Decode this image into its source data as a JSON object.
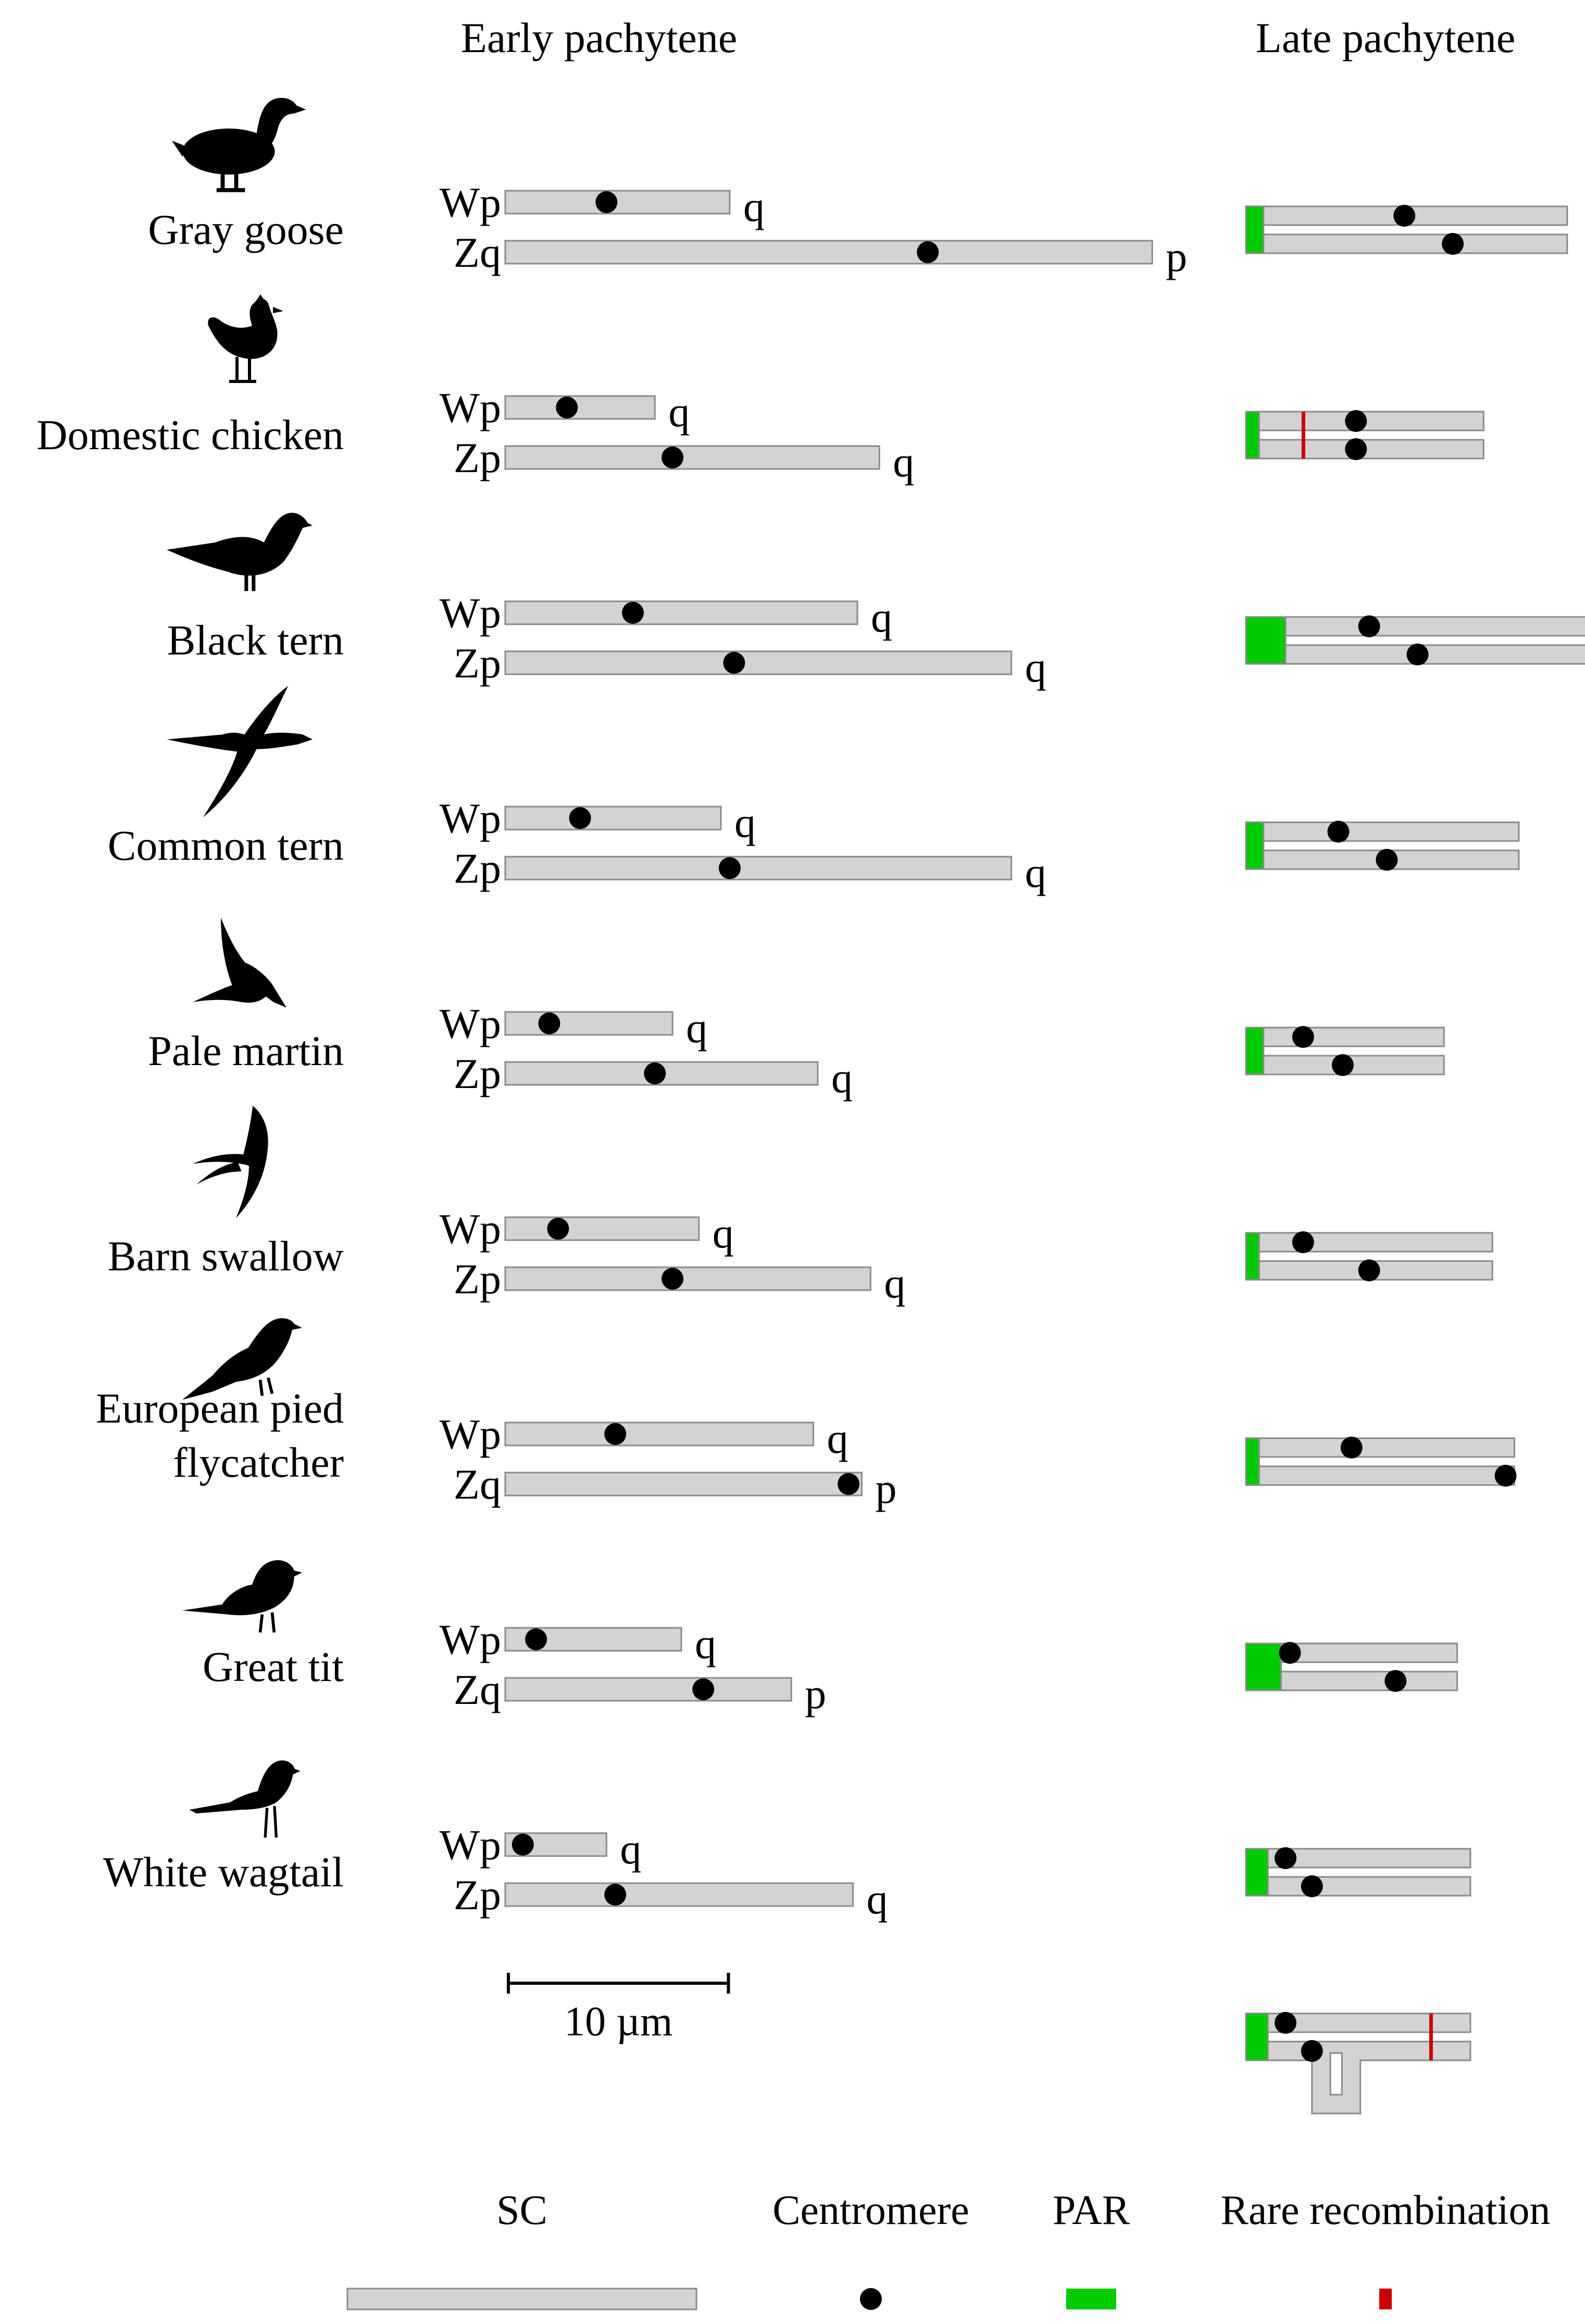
{
  "headers": {
    "early": "Early pachytene",
    "late": "Late pachytene"
  },
  "colors": {
    "sc_fill": "#d3d3d3",
    "sc_stroke": "#8a8a8a",
    "centromere": "#000000",
    "par": "#00cc00",
    "rare": "#cc0000"
  },
  "species": [
    {
      "name_lines": [
        "Gray goose"
      ],
      "icon": "goose-silhouette-icon",
      "w": {
        "label": "Wp",
        "length": 5.1,
        "centromere": 2.3,
        "end": "q"
      },
      "z": {
        "label": "Zq",
        "length": 14.7,
        "centromere": 9.6,
        "end": "p"
      },
      "late": {
        "length": 7.3,
        "par": 0.4,
        "w_centromere": 3.6,
        "z_centromere": 4.7,
        "rare": null
      }
    },
    {
      "name_lines": [
        "Domestic chicken"
      ],
      "icon": "chicken-silhouette-icon",
      "w": {
        "label": "Wp",
        "length": 3.4,
        "centromere": 1.4,
        "end": "q"
      },
      "z": {
        "label": "Zp",
        "length": 8.5,
        "centromere": 3.8,
        "end": "q"
      },
      "late": {
        "length": 5.4,
        "par": 0.3,
        "w_centromere": 2.5,
        "z_centromere": 2.5,
        "rare": 1.3
      }
    },
    {
      "name_lines": [
        "Black tern"
      ],
      "icon": "black-tern-silhouette-icon",
      "w": {
        "label": "Wp",
        "length": 8.0,
        "centromere": 2.9,
        "end": "q"
      },
      "z": {
        "label": "Zp",
        "length": 11.5,
        "centromere": 5.2,
        "end": "q"
      },
      "late": {
        "length": 7.8,
        "par": 0.9,
        "w_centromere": 2.8,
        "z_centromere": 3.9,
        "rare": null
      }
    },
    {
      "name_lines": [
        "Common tern"
      ],
      "icon": "common-tern-silhouette-icon",
      "w": {
        "label": "Wp",
        "length": 4.9,
        "centromere": 1.7,
        "end": "q"
      },
      "z": {
        "label": "Zp",
        "length": 11.5,
        "centromere": 5.1,
        "end": "q"
      },
      "late": {
        "length": 6.2,
        "par": 0.4,
        "w_centromere": 2.1,
        "z_centromere": 3.2,
        "rare": null
      }
    },
    {
      "name_lines": [
        "Pale martin"
      ],
      "icon": "pale-martin-silhouette-icon",
      "w": {
        "label": "Wp",
        "length": 3.8,
        "centromere": 1.0,
        "end": "q"
      },
      "z": {
        "label": "Zp",
        "length": 7.1,
        "centromere": 3.4,
        "end": "q"
      },
      "late": {
        "length": 4.5,
        "par": 0.4,
        "w_centromere": 1.3,
        "z_centromere": 2.2,
        "rare": null
      }
    },
    {
      "name_lines": [
        "Barn swallow"
      ],
      "icon": "barn-swallow-silhouette-icon",
      "w": {
        "label": "Wp",
        "length": 4.4,
        "centromere": 1.2,
        "end": "q"
      },
      "z": {
        "label": "Zp",
        "length": 8.3,
        "centromere": 3.8,
        "end": "q"
      },
      "late": {
        "length": 5.6,
        "par": 0.3,
        "w_centromere": 1.3,
        "z_centromere": 2.8,
        "rare": null
      }
    },
    {
      "name_lines": [
        "European pied",
        "flycatcher"
      ],
      "icon": "flycatcher-silhouette-icon",
      "w": {
        "label": "Wp",
        "length": 7.0,
        "centromere": 2.5,
        "end": "q"
      },
      "z": {
        "label": "Zq",
        "length": 8.1,
        "centromere": 7.8,
        "end": "p"
      },
      "late": {
        "length": 6.1,
        "par": 0.3,
        "w_centromere": 2.4,
        "z_centromere": 5.9,
        "rare": null
      }
    },
    {
      "name_lines": [
        "Great tit"
      ],
      "icon": "great-tit-silhouette-icon",
      "w": {
        "label": "Wp",
        "length": 4.0,
        "centromere": 0.7,
        "end": "q"
      },
      "z": {
        "label": "Zq",
        "length": 6.5,
        "centromere": 4.5,
        "end": "p"
      },
      "late": {
        "length": 4.8,
        "par": 0.8,
        "w_centromere": 1.0,
        "z_centromere": 3.4,
        "rare": null
      }
    },
    {
      "name_lines": [
        "White wagtail"
      ],
      "icon": "white-wagtail-silhouette-icon",
      "w": {
        "label": "Wp",
        "length": 2.3,
        "centromere": 0.4,
        "end": "q"
      },
      "z": {
        "label": "Zp",
        "length": 7.9,
        "centromere": 2.5,
        "end": "q"
      },
      "late": {
        "length": 5.1,
        "par": 0.5,
        "w_centromere": 0.9,
        "z_centromere": 1.5,
        "rare": null
      }
    }
  ],
  "extra_late": {
    "length": 5.1,
    "par": 0.5,
    "w_centromere": 0.9,
    "z_centromere": 1.5,
    "rare": 4.2,
    "loop": true
  },
  "scale_bar": {
    "label": "10 µm",
    "length": 5.0
  },
  "legend": [
    {
      "label": "SC",
      "kind": "sc"
    },
    {
      "label": "Centromere",
      "kind": "centromere"
    },
    {
      "label": "PAR",
      "kind": "par"
    },
    {
      "label": "Rare recombination",
      "kind": "rare"
    }
  ]
}
